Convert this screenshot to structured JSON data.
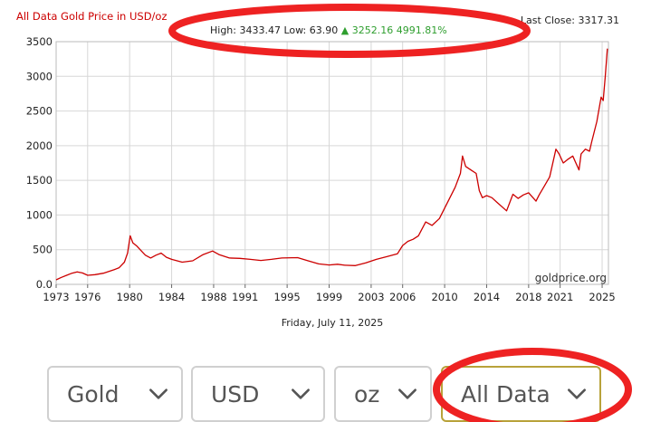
{
  "chart_data": {
    "type": "line",
    "title": "All Data Gold Price in USD/oz",
    "summary": {
      "high_label": "High:",
      "high": "3433.47",
      "low_label": "Low:",
      "low": "63.90",
      "change": "3252.16",
      "change_pct": "4991.81%"
    },
    "last_close_label": "Last Close:",
    "last_close": "3317.31",
    "watermark": "goldprice.org",
    "date_label": "Friday, July 11, 2025",
    "ylim": [
      0,
      3500
    ],
    "xlim": [
      1973,
      2025.6
    ],
    "y_ticks": [
      "3500",
      "3000",
      "2500",
      "2000",
      "1500",
      "1000",
      "500",
      "0.0"
    ],
    "x_ticks": [
      "1973",
      "1976",
      "1980",
      "1984",
      "1988",
      "1991",
      "1995",
      "1999",
      "2003",
      "2006",
      "2010",
      "2014",
      "2018",
      "2021",
      "2025"
    ],
    "grid": true,
    "series": [
      {
        "color": "#cc0000",
        "x": [
          1973.0,
          1973.5,
          1974.0,
          1974.5,
          1975.0,
          1975.5,
          1976.0,
          1976.7,
          1977.5,
          1978.5,
          1979.0,
          1979.5,
          1979.8,
          1980.05,
          1980.3,
          1980.7,
          1981.0,
          1981.5,
          1982.0,
          1982.5,
          1983.0,
          1983.5,
          1984.0,
          1985.0,
          1986.0,
          1987.0,
          1987.9,
          1988.5,
          1989.5,
          1990.5,
          1991.5,
          1992.5,
          1993.5,
          1994.5,
          1996.0,
          1997.0,
          1998.0,
          1999.0,
          1999.8,
          2000.5,
          2001.5,
          2002.5,
          2003.5,
          2004.5,
          2005.5,
          2006.0,
          2006.5,
          2007.0,
          2007.5,
          2008.2,
          2008.8,
          2009.5,
          2010.0,
          2010.5,
          2011.0,
          2011.5,
          2011.7,
          2012.0,
          2012.5,
          2013.0,
          2013.3,
          2013.6,
          2014.0,
          2014.5,
          2015.0,
          2015.9,
          2016.5,
          2017.0,
          2017.5,
          2018.0,
          2018.7,
          2019.0,
          2019.5,
          2020.0,
          2020.6,
          2020.9,
          2021.3,
          2021.7,
          2022.2,
          2022.8,
          2023.0,
          2023.4,
          2023.8,
          2024.0,
          2024.5,
          2024.9,
          2025.1,
          2025.3,
          2025.5
        ],
        "y": [
          65,
          100,
          130,
          160,
          180,
          165,
          130,
          140,
          160,
          210,
          240,
          320,
          450,
          700,
          600,
          550,
          500,
          420,
          380,
          420,
          450,
          390,
          360,
          320,
          340,
          430,
          480,
          430,
          380,
          375,
          360,
          345,
          360,
          380,
          385,
          340,
          295,
          280,
          290,
          275,
          270,
          310,
          360,
          400,
          440,
          560,
          620,
          650,
          700,
          900,
          850,
          950,
          1100,
          1250,
          1400,
          1600,
          1850,
          1700,
          1650,
          1600,
          1350,
          1250,
          1280,
          1250,
          1180,
          1060,
          1300,
          1240,
          1290,
          1320,
          1200,
          1290,
          1420,
          1550,
          1950,
          1880,
          1750,
          1800,
          1850,
          1650,
          1880,
          1950,
          1920,
          2050,
          2350,
          2700,
          2650,
          3000,
          3400
        ]
      }
    ]
  },
  "controls": {
    "metal": "Gold",
    "currency": "USD",
    "unit": "oz",
    "range": "All Data"
  },
  "colors": {
    "title": "#cc0000",
    "line": "#cc0000",
    "change_up": "#2e9e2e",
    "highlight_oval": "#ee2222",
    "grid": "#d7d7d7"
  }
}
